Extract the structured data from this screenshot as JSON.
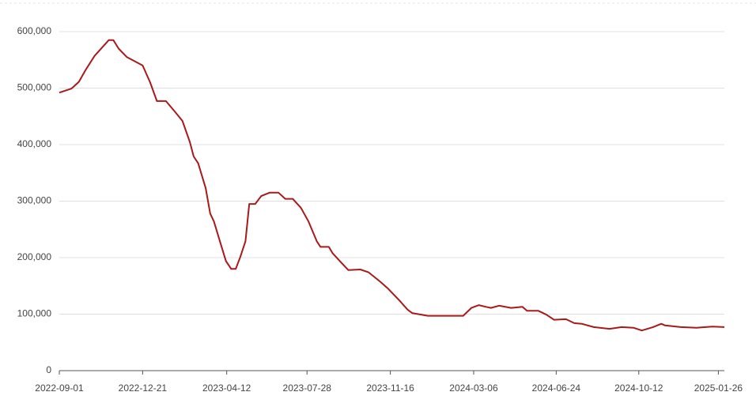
{
  "chart_data": {
    "type": "line",
    "x": [
      "2022-09-01",
      "2022-09-17",
      "2022-09-27",
      "2022-10-06",
      "2022-10-18",
      "2022-11-06",
      "2022-11-12",
      "2022-11-19",
      "2022-11-30",
      "2022-12-10",
      "2022-12-21",
      "2022-12-31",
      "2023-01-09",
      "2023-01-21",
      "2023-02-01",
      "2023-02-12",
      "2023-02-22",
      "2023-02-27",
      "2023-03-05",
      "2023-03-15",
      "2023-03-21",
      "2023-03-26",
      "2023-04-03",
      "2023-04-11",
      "2023-04-18",
      "2023-04-24",
      "2023-04-30",
      "2023-05-07",
      "2023-05-12",
      "2023-05-20",
      "2023-05-28",
      "2023-06-08",
      "2023-06-20",
      "2023-06-29",
      "2023-07-09",
      "2023-07-20",
      "2023-07-30",
      "2023-08-10",
      "2023-08-15",
      "2023-08-26",
      "2023-08-31",
      "2023-09-11",
      "2023-09-21",
      "2023-10-07",
      "2023-10-18",
      "2023-11-02",
      "2023-11-13",
      "2023-11-29",
      "2023-12-09",
      "2023-12-15",
      "2024-01-05",
      "2024-01-26",
      "2024-02-21",
      "2024-03-03",
      "2024-03-13",
      "2024-03-22",
      "2024-03-29",
      "2024-04-09",
      "2024-04-25",
      "2024-05-10",
      "2024-05-16",
      "2024-05-31",
      "2024-06-11",
      "2024-06-21",
      "2024-07-07",
      "2024-07-18",
      "2024-07-28",
      "2024-08-13",
      "2024-09-03",
      "2024-09-19",
      "2024-10-05",
      "2024-10-16",
      "2024-10-31",
      "2024-11-11",
      "2024-11-16",
      "2024-12-07",
      "2024-12-28",
      "2025-01-18",
      "2025-02-03"
    ],
    "values": [
      492000,
      499000,
      511000,
      532000,
      557000,
      585000,
      585000,
      570000,
      555000,
      548000,
      540000,
      510000,
      477000,
      477000,
      460000,
      442000,
      404000,
      379000,
      367000,
      323000,
      278000,
      264000,
      229000,
      194000,
      180000,
      180000,
      201000,
      229000,
      295000,
      295000,
      309000,
      315000,
      315000,
      304000,
      304000,
      288000,
      264000,
      229000,
      219000,
      219000,
      208000,
      192000,
      178000,
      179000,
      174000,
      158000,
      145000,
      123000,
      108000,
      102000,
      97000,
      97000,
      97000,
      111000,
      116000,
      113000,
      111000,
      115000,
      111000,
      113000,
      106000,
      106000,
      99000,
      90000,
      91000,
      84000,
      83000,
      77000,
      74000,
      77000,
      76000,
      71000,
      77000,
      83000,
      80000,
      77000,
      76000,
      78000,
      77000
    ],
    "color": "#a8191b",
    "xlim": [
      "2022-09-01",
      "2025-02-03"
    ],
    "xticks": [
      "2022-09-01",
      "2022-12-21",
      "2023-04-12",
      "2023-07-28",
      "2023-11-16",
      "2024-03-06",
      "2024-06-24",
      "2024-10-12",
      "2025-01-26"
    ],
    "ylim": [
      0,
      600000
    ],
    "yticks": [
      0,
      {
        "value": 100000,
        "label": "100,000"
      },
      {
        "value": 200000,
        "label": "200,000"
      },
      {
        "value": 300000,
        "label": "300,000"
      },
      {
        "value": 400000,
        "label": "400,000"
      },
      {
        "value": 500000,
        "label": "500,000"
      },
      {
        "value": 600000,
        "label": "600,000"
      }
    ],
    "grid": true
  }
}
